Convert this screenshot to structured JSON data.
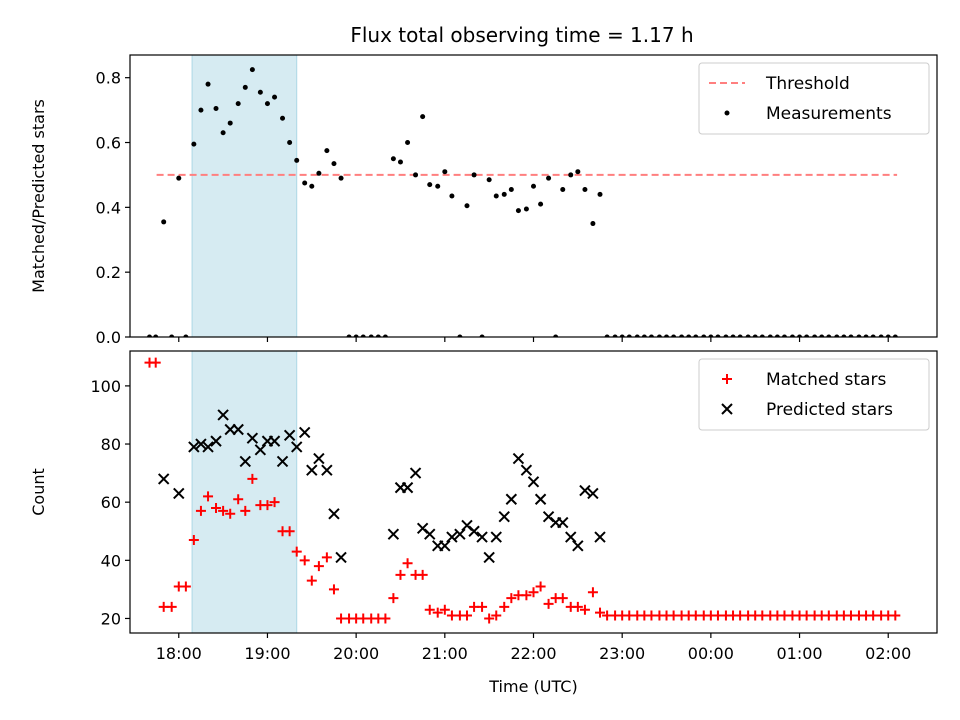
{
  "title": "Flux total observing time = 1.17 h",
  "chart_data": [
    {
      "type": "scatter",
      "panel": "top",
      "ylabel": "Matched/Predicted stars",
      "xlabel": "",
      "x_unit": "UTC time (hours; values past 24 are next day)",
      "xlim": [
        17.45,
        26.55
      ],
      "ylim": [
        0,
        0.87
      ],
      "yticks": [
        0.0,
        0.2,
        0.4,
        0.6,
        0.8
      ],
      "ytick_labels": [
        "0.0",
        "0.2",
        "0.4",
        "0.6",
        "0.8"
      ],
      "highlight_span": [
        18.15,
        19.33
      ],
      "threshold": {
        "value": 0.5,
        "x_range": [
          17.75,
          26.1
        ],
        "color": "#ff7f7f"
      },
      "legend": {
        "position": "top-right",
        "entries": [
          "Threshold",
          "Measurements"
        ]
      },
      "series": [
        {
          "name": "Measurements",
          "color": "#000000",
          "x": [
            17.67,
            17.74,
            17.83,
            17.92,
            18.0,
            18.08,
            18.17,
            18.25,
            18.33,
            18.42,
            18.5,
            18.58,
            18.67,
            18.75,
            18.83,
            18.92,
            19.0,
            19.08,
            19.17,
            19.25,
            19.33,
            19.42,
            19.5,
            19.58,
            19.67,
            19.75,
            19.83,
            19.92,
            20.0,
            20.08,
            20.17,
            20.25,
            20.33,
            20.42,
            20.5,
            20.58,
            20.67,
            20.75,
            20.83,
            20.92,
            21.0,
            21.08,
            21.17,
            21.25,
            21.33,
            21.42,
            21.5,
            21.58,
            21.67,
            21.75,
            21.83,
            21.92,
            22.0,
            22.08,
            22.17,
            22.25,
            22.33,
            22.42,
            22.5,
            22.58,
            22.67,
            22.75,
            22.83,
            22.92,
            23.0,
            23.08,
            23.17,
            23.25,
            23.33,
            23.42,
            23.5,
            23.58,
            23.67,
            23.75,
            23.83,
            23.92,
            24.0,
            24.08,
            24.17,
            24.25,
            24.33,
            24.42,
            24.5,
            24.58,
            24.67,
            24.75,
            24.83,
            24.92,
            25.0,
            25.08,
            25.17,
            25.25,
            25.33,
            25.42,
            25.5,
            25.58,
            25.67,
            25.75,
            25.83,
            25.92,
            26.0,
            26.08
          ],
          "y": [
            0,
            0,
            0.355,
            0,
            0.49,
            0,
            0.595,
            0.7,
            0.78,
            0.705,
            0.63,
            0.66,
            0.72,
            0.77,
            0.825,
            0.755,
            0.72,
            0.74,
            0.675,
            0.6,
            0.545,
            0.475,
            0.465,
            0.505,
            0.575,
            0.535,
            0.49,
            0,
            0,
            0,
            0,
            0,
            0,
            0.55,
            0.54,
            0.6,
            0.5,
            0.68,
            0.47,
            0.465,
            0.51,
            0.435,
            0,
            0.405,
            0.5,
            0,
            0.485,
            0.435,
            0.44,
            0.455,
            0.39,
            0.395,
            0.465,
            0.41,
            0.49,
            0,
            0.455,
            0.5,
            0.51,
            0.455,
            0.35,
            0.44,
            0,
            0,
            0,
            0,
            0,
            0,
            0,
            0,
            0,
            0,
            0,
            0,
            0,
            0,
            0,
            0,
            0,
            0,
            0,
            0,
            0,
            0,
            0,
            0,
            0,
            0,
            0,
            0,
            0,
            0,
            0,
            0,
            0,
            0,
            0,
            0,
            0,
            0,
            0,
            0
          ]
        }
      ]
    },
    {
      "type": "scatter",
      "panel": "bottom",
      "ylabel": "Count",
      "xlabel": "Time (UTC)",
      "xlim": [
        17.45,
        26.55
      ],
      "ylim": [
        15,
        112
      ],
      "yticks": [
        20,
        40,
        60,
        80,
        100
      ],
      "ytick_labels": [
        "20",
        "40",
        "60",
        "80",
        "100"
      ],
      "xticks": [
        18,
        19,
        20,
        21,
        22,
        23,
        24,
        25,
        26
      ],
      "xtick_labels": [
        "18:00",
        "19:00",
        "20:00",
        "21:00",
        "22:00",
        "23:00",
        "00:00",
        "01:00",
        "02:00"
      ],
      "highlight_span": [
        18.15,
        19.33
      ],
      "legend": {
        "position": "top-right",
        "entries": [
          "Matched stars",
          "Predicted stars"
        ]
      },
      "series": [
        {
          "name": "Matched stars",
          "marker": "plus",
          "color": "#ff0000",
          "x": [
            17.67,
            17.74,
            17.83,
            17.92,
            18.0,
            18.08,
            18.17,
            18.25,
            18.33,
            18.42,
            18.5,
            18.58,
            18.67,
            18.75,
            18.83,
            18.92,
            19.0,
            19.08,
            19.17,
            19.25,
            19.33,
            19.42,
            19.5,
            19.58,
            19.67,
            19.75,
            19.83,
            19.92,
            20.0,
            20.08,
            20.17,
            20.25,
            20.33,
            20.42,
            20.5,
            20.58,
            20.67,
            20.75,
            20.83,
            20.92,
            21.0,
            21.08,
            21.17,
            21.25,
            21.33,
            21.42,
            21.5,
            21.58,
            21.67,
            21.75,
            21.83,
            21.92,
            22.0,
            22.08,
            22.17,
            22.25,
            22.33,
            22.42,
            22.5,
            22.58,
            22.67,
            22.75,
            22.83,
            22.92,
            23.0,
            23.08,
            23.17,
            23.25,
            23.33,
            23.42,
            23.5,
            23.58,
            23.67,
            23.75,
            23.83,
            23.92,
            24.0,
            24.08,
            24.17,
            24.25,
            24.33,
            24.42,
            24.5,
            24.58,
            24.67,
            24.75,
            24.83,
            24.92,
            25.0,
            25.08,
            25.17,
            25.25,
            25.33,
            25.42,
            25.5,
            25.58,
            25.67,
            25.75,
            25.83,
            25.92,
            26.0,
            26.08
          ],
          "y": [
            108,
            108,
            24,
            24,
            31,
            31,
            47,
            57,
            62,
            58,
            57,
            56,
            61,
            57,
            68,
            59,
            59,
            60,
            50,
            50,
            43,
            40,
            33,
            38,
            41,
            30,
            20,
            20,
            20,
            20,
            20,
            20,
            20,
            27,
            35,
            39,
            35,
            35,
            23,
            22,
            23,
            21,
            21,
            21,
            24,
            24,
            20,
            21,
            24,
            27,
            28,
            28,
            29,
            31,
            25,
            27,
            27,
            24,
            24,
            23,
            29,
            22,
            21,
            21,
            21,
            21,
            21,
            21,
            21,
            21,
            21,
            21,
            21,
            21,
            21,
            21,
            21,
            21,
            21,
            21,
            21,
            21,
            21,
            21,
            21,
            21,
            21,
            21,
            21,
            21,
            21,
            21,
            21,
            21,
            21,
            21,
            21,
            21,
            21,
            21,
            21,
            21
          ]
        },
        {
          "name": "Predicted stars",
          "marker": "x",
          "color": "#000000",
          "x": [
            17.83,
            18.0,
            18.17,
            18.25,
            18.33,
            18.42,
            18.5,
            18.58,
            18.67,
            18.75,
            18.83,
            18.92,
            19.0,
            19.08,
            19.17,
            19.25,
            19.33,
            19.42,
            19.5,
            19.58,
            19.67,
            19.75,
            19.83,
            20.42,
            20.5,
            20.58,
            20.67,
            20.75,
            20.83,
            20.92,
            21.0,
            21.08,
            21.17,
            21.25,
            21.33,
            21.42,
            21.5,
            21.58,
            21.67,
            21.75,
            21.83,
            21.92,
            22.0,
            22.08,
            22.17,
            22.25,
            22.33,
            22.42,
            22.5,
            22.58,
            22.67,
            22.75
          ],
          "y": [
            68,
            63,
            79,
            80,
            79,
            81,
            90,
            85,
            85,
            74,
            82,
            78,
            81,
            81,
            74,
            83,
            79,
            84,
            71,
            75,
            71,
            56,
            41,
            49,
            65,
            65,
            70,
            51,
            49,
            45,
            45,
            48,
            49,
            52,
            50,
            48,
            41,
            48,
            55,
            61,
            75,
            71,
            67,
            61,
            55,
            53,
            53,
            48,
            45,
            64,
            63,
            48
          ]
        }
      ]
    }
  ]
}
